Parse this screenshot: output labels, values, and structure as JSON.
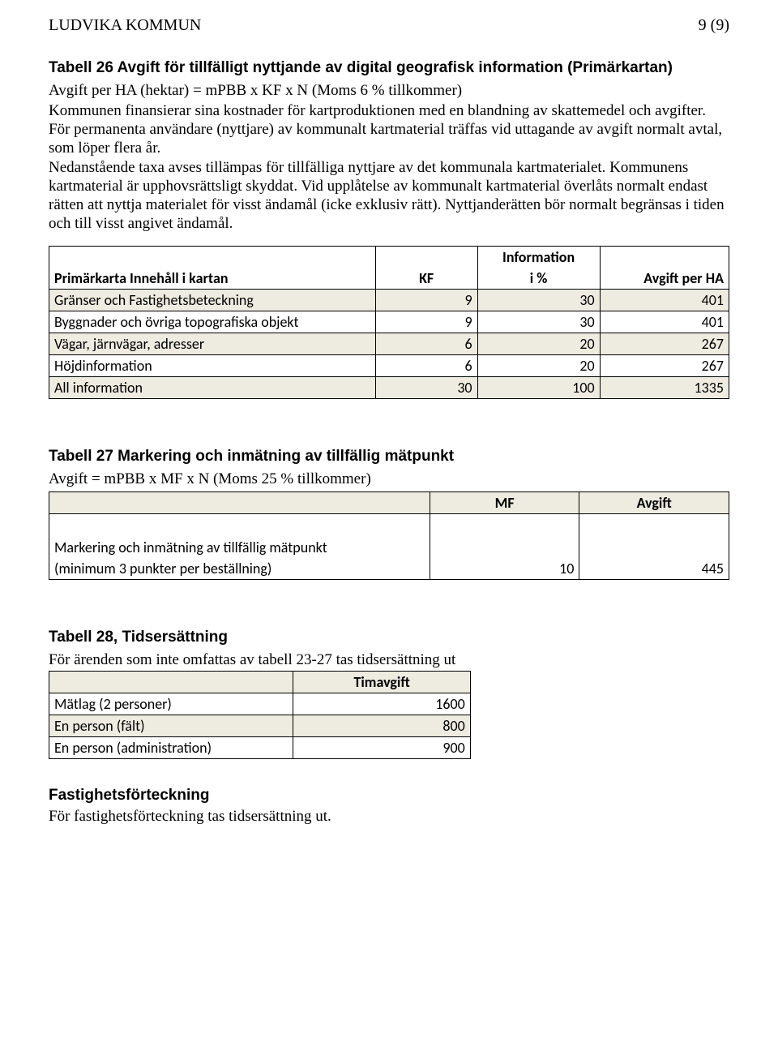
{
  "header": {
    "org": "LUDVIKA KOMMUN",
    "page": "9 (9)"
  },
  "section26": {
    "title": "Tabell 26 Avgift för tillfälligt nyttjande av digital geografisk information (Primärkartan)",
    "formula": "Avgift per HA (hektar) = mPBB x KF x N (Moms 6 % tillkommer)",
    "para": "Kommunen finansierar sina kostnader för kartproduktionen med en blandning av skattemedel och avgifter.\nFör permanenta användare (nyttjare) av kommunalt kartmaterial träffas vid uttagande av avgift normalt avtal, som löper flera år.\nNedanstående taxa avses tillämpas för tillfälliga nyttjare av det kommunala kartmaterialet. Kommunens kartmaterial är upphovsrättsligt skyddat. Vid upplåtelse av kommunalt kartmaterial överlåts normalt endast rätten att nyttja materialet för visst ändamål (icke exklusiv rätt). Nyttjanderätten bör normalt begränsas i tiden och till visst angivet ändamål.",
    "table": {
      "head": {
        "c1": "Primärkarta Innehåll i kartan",
        "c2": "KF",
        "c3a": "Information",
        "c3b": "i %",
        "c4": "Avgift per HA"
      },
      "rows": [
        {
          "shaded": true,
          "label": "Gränser och Fastighetsbeteckning",
          "kf": "9",
          "info": "30",
          "avg": "401"
        },
        {
          "shaded": false,
          "label": "Byggnader och övriga topografiska objekt",
          "kf": "9",
          "info": "30",
          "avg": "401"
        },
        {
          "shaded": true,
          "label": "Vägar, järnvägar, adresser",
          "kf": "6",
          "info": "20",
          "avg": "267"
        },
        {
          "shaded": false,
          "label": "Höjdinformation",
          "kf": "6",
          "info": "20",
          "avg": "267"
        },
        {
          "shaded": true,
          "label": "All information",
          "kf": "30",
          "info": "100",
          "avg": "1335"
        }
      ]
    }
  },
  "section27": {
    "title": "Tabell 27 Markering och inmätning av tillfällig mätpunkt",
    "formula": "Avgift = mPBB x MF x N (Moms 25 % tillkommer)",
    "table": {
      "head": {
        "c2": "MF",
        "c3": "Avgift"
      },
      "row": {
        "label1": "Markering och inmätning av tillfällig mätpunkt",
        "label2": "(minimum 3 punkter per beställning)",
        "mf": "10",
        "avg": "445"
      }
    }
  },
  "section28": {
    "title": "Tabell 28, Tidsersättning",
    "intro": "För ärenden som inte omfattas av tabell 23-27 tas tidsersättning ut",
    "table": {
      "head": {
        "c2": "Timavgift"
      },
      "rows": [
        {
          "shaded": false,
          "label": "Mätlag (2 personer)",
          "val": "1600"
        },
        {
          "shaded": true,
          "label": "En person (fält)",
          "val": "800"
        },
        {
          "shaded": false,
          "label": "En person (administration)",
          "val": "900"
        }
      ]
    }
  },
  "sectionFF": {
    "title": "Fastighetsförteckning",
    "text": "För fastighetsförteckning tas tidsersättning ut."
  }
}
